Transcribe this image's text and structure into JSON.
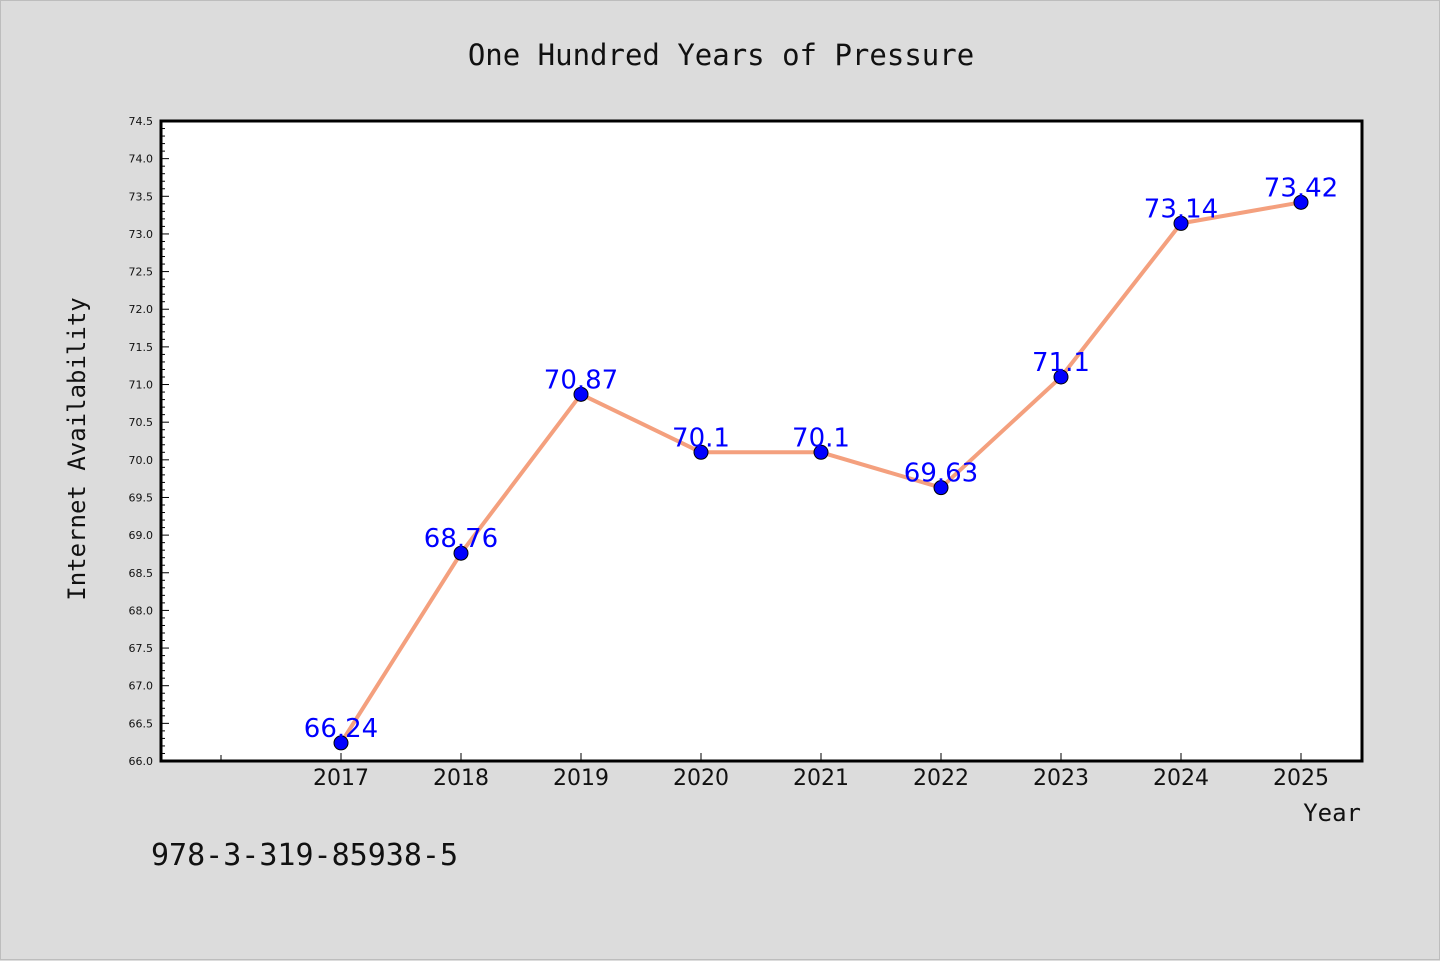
{
  "chart_data": {
    "type": "line",
    "title": "One Hundred Years of Pressure",
    "xlabel": "Year",
    "ylabel": "Internet Availability",
    "categories": [
      "2017",
      "2018",
      "2019",
      "2020",
      "2021",
      "2022",
      "2023",
      "2024",
      "2025"
    ],
    "values": [
      66.24,
      68.76,
      70.87,
      70.1,
      70.1,
      69.63,
      71.1,
      73.14,
      73.42
    ],
    "data_labels": [
      "66.24",
      "68.76",
      "70.87",
      "70.1",
      "70.1",
      "69.63",
      "71.1",
      "73.14",
      "73.42"
    ],
    "ylim": [
      66.0,
      74.5
    ],
    "yticks": [
      "66.0",
      "66.5",
      "67.0",
      "67.5",
      "68.0",
      "68.5",
      "69.0",
      "69.5",
      "70.0",
      "70.5",
      "71.0",
      "71.5",
      "72.0",
      "72.5",
      "73.0",
      "73.5",
      "74.0",
      "74.5"
    ],
    "grid": false,
    "legend": "none",
    "line_color": "#f4a07e",
    "marker_color": "#0000ff",
    "label_color": "#0000ff"
  },
  "footer_text": "978-3-319-85938-5"
}
